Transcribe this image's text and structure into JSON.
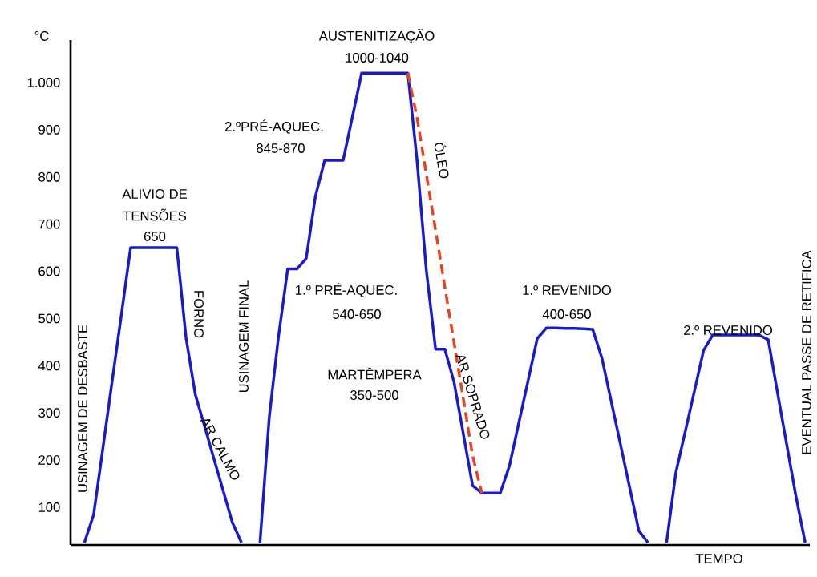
{
  "chart_data": {
    "type": "line",
    "xlabel": "TEMPO",
    "ylabel": "°C",
    "categories": [
      null,
      null,
      null,
      null,
      null,
      null,
      null,
      null,
      null,
      null,
      null,
      null,
      null,
      null,
      null,
      null,
      null,
      null,
      null,
      null,
      null,
      null,
      null,
      null,
      null,
      null,
      null,
      null,
      null,
      null,
      null,
      null,
      null,
      null,
      null,
      null,
      null,
      null,
      null,
      null,
      null,
      null,
      null,
      null,
      null,
      null,
      null,
      null,
      null,
      null,
      null,
      null,
      null,
      null,
      null,
      null,
      null,
      null,
      null,
      null,
      null,
      null,
      null,
      null,
      null,
      null,
      null,
      null,
      null,
      null,
      null,
      null,
      null,
      null,
      null,
      null,
      null,
      null,
      null,
      null
    ],
    "ylim": [
      20,
      1090
    ],
    "yticks": [
      100,
      200,
      300,
      400,
      500,
      600,
      700,
      800,
      900,
      {
        "value": 1000,
        "label": "1.000"
      }
    ],
    "tick_labels": "y",
    "grid": false,
    "marker": "none",
    "series": [
      {
        "color": "#1a1acd",
        "line_style": "solid",
        "values": [
          null,
          25,
          84,
          225,
          367,
          508,
          650,
          650,
          650,
          650,
          650,
          650,
          459,
          339,
          272,
          204,
          136,
          68,
          25,
          null,
          25,
          290,
          461,
          605,
          605,
          627,
          759,
          835,
          835,
          835,
          927,
          1020,
          1020,
          1020,
          1020,
          1020,
          1020,
          834,
          602,
          435,
          435,
          365,
          256,
          146,
          130,
          130,
          130,
          188,
          278,
          367,
          457,
          480,
          480,
          479,
          479,
          478,
          477,
          416,
          325,
          234,
          142,
          50,
          25,
          null,
          25,
          173,
          259,
          345,
          432,
          465,
          465,
          465,
          465,
          465,
          465,
          455,
          343,
          233,
          123,
          25
        ]
      },
      {
        "color": "#e8431e",
        "line_style": "dashed",
        "values": [
          null,
          null,
          null,
          null,
          null,
          null,
          null,
          null,
          null,
          null,
          null,
          null,
          null,
          null,
          null,
          null,
          null,
          null,
          null,
          null,
          null,
          null,
          null,
          null,
          null,
          null,
          null,
          null,
          null,
          null,
          null,
          null,
          null,
          null,
          null,
          null,
          1020,
          925,
          806,
          687,
          567,
          449,
          330,
          210,
          130,
          null,
          null,
          null,
          null,
          null,
          null,
          null,
          null,
          null,
          null,
          null,
          null,
          null,
          null,
          null,
          null,
          null,
          null,
          null,
          null,
          null,
          null,
          null,
          null,
          null,
          null,
          null,
          null,
          null,
          null,
          null,
          null,
          null,
          null,
          null
        ]
      }
    ],
    "annotations": [
      "AUSTENITIZAÇÃO",
      "1000-1040",
      "2.ºPRÉ-AQUEC.",
      "845-870",
      "ALIVIO DE",
      "TENSÕES",
      "650",
      "1.º PRÉ-AQUEC.",
      "540-650",
      "MARTÊMPERA",
      "350-500",
      "1.º REVENIDO",
      "400-650",
      "2.º REVENIDO",
      "FORNO",
      "AR CALMO",
      "ÓLEO",
      "AR SOPRADO",
      "USINAGEM DE DESBASTE",
      "USINAGEM FINAL",
      "EVENTUAL PASSE DE RETIFICA"
    ]
  }
}
